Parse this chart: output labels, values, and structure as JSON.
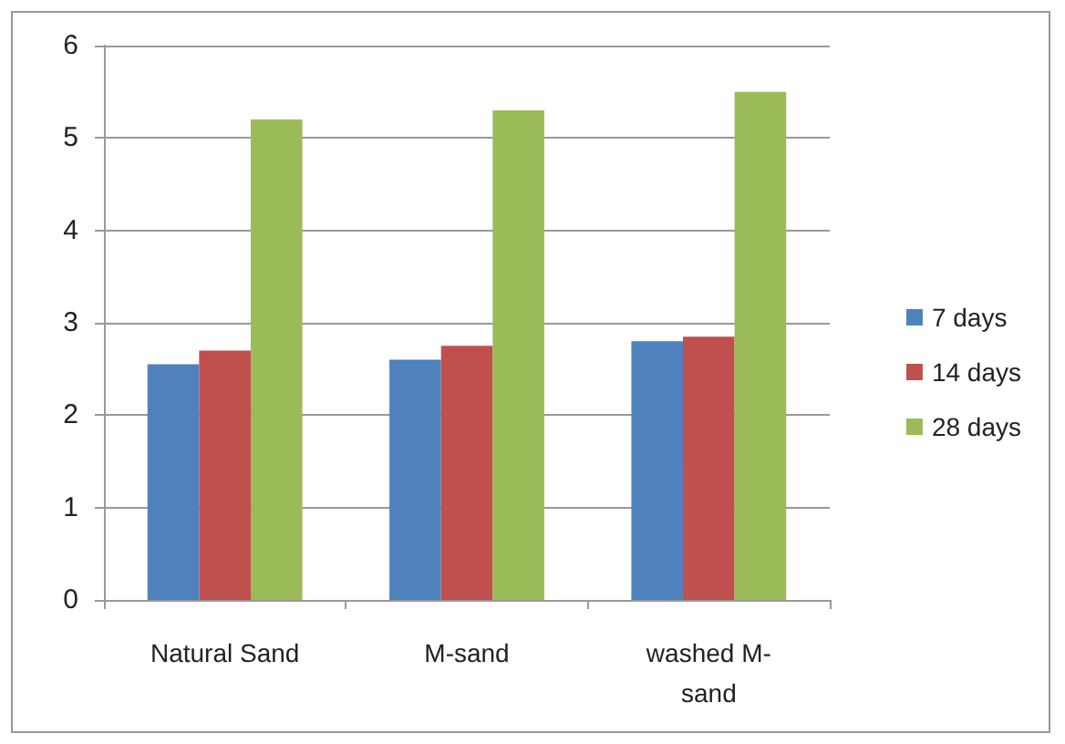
{
  "chart_data": {
    "type": "bar",
    "categories": [
      "Natural Sand",
      "M-sand",
      "washed M-\nsand"
    ],
    "series": [
      {
        "name": "7 days",
        "color": "#4f81bd",
        "values": [
          2.55,
          2.6,
          2.8
        ]
      },
      {
        "name": "14 days",
        "color": "#c0504d",
        "values": [
          2.7,
          2.75,
          2.85
        ]
      },
      {
        "name": "28 days",
        "color": "#9bbb59",
        "values": [
          5.2,
          5.3,
          5.5
        ]
      }
    ],
    "ylim": [
      0,
      6
    ],
    "yticks": [
      0,
      1,
      2,
      3,
      4,
      5,
      6
    ],
    "grid": "y",
    "legend": "right"
  }
}
